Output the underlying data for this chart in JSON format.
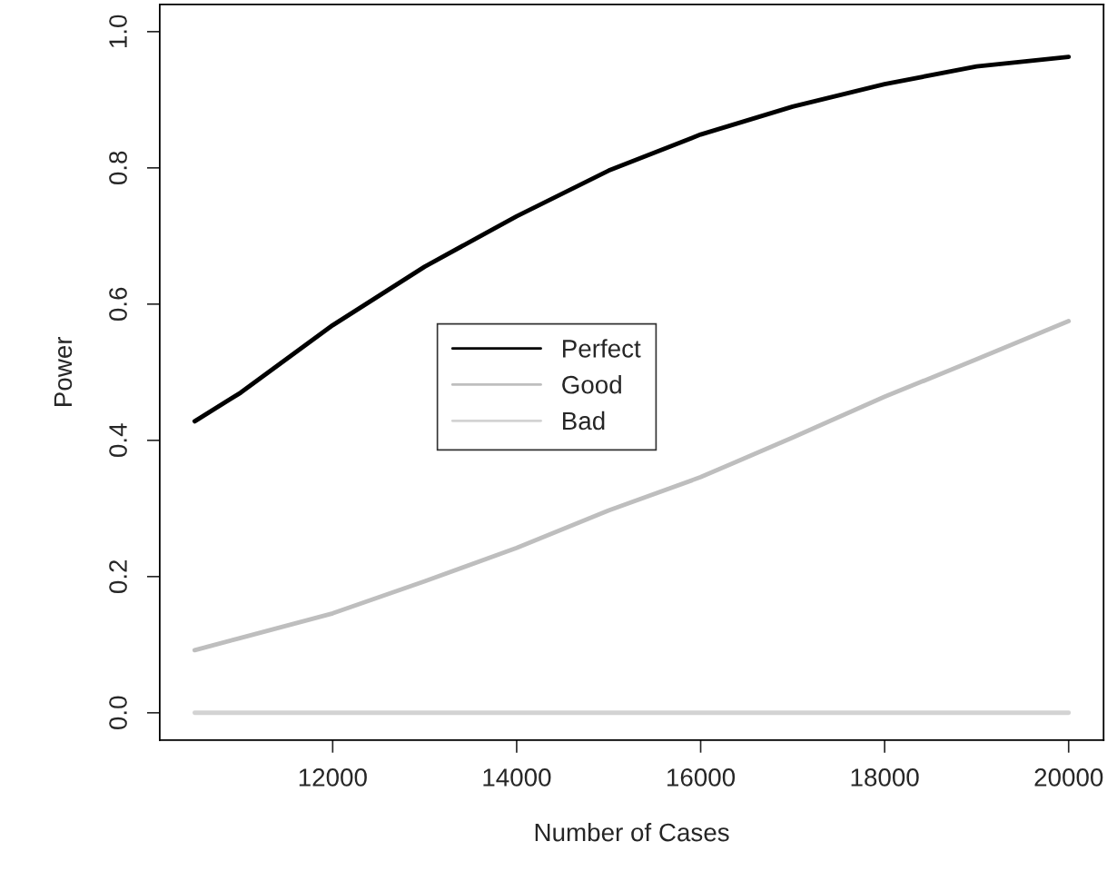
{
  "chart_data": {
    "type": "line",
    "xlabel": "Number of Cases",
    "ylabel": "Power",
    "x": [
      10500,
      11000,
      12000,
      13000,
      14000,
      15000,
      16000,
      17000,
      18000,
      19000,
      20000
    ],
    "series": [
      {
        "name": "Perfect",
        "color": "#000000",
        "values": [
          0.428,
          0.47,
          0.569,
          0.655,
          0.729,
          0.796,
          0.849,
          0.89,
          0.923,
          0.949,
          0.963
        ]
      },
      {
        "name": "Good",
        "color": "#bebebe",
        "values": [
          0.092,
          0.11,
          0.146,
          0.193,
          0.242,
          0.297,
          0.346,
          0.404,
          0.464,
          0.519,
          0.575
        ]
      },
      {
        "name": "Bad",
        "color": "#d3d3d3",
        "values": [
          0,
          0,
          0,
          0,
          0,
          0,
          0,
          0,
          0,
          0,
          0
        ]
      }
    ],
    "xlim": [
      10120,
      20380
    ],
    "xticks": [
      12000,
      14000,
      16000,
      18000,
      20000
    ],
    "ylim": [
      -0.04,
      1.04
    ],
    "yticks": [
      {
        "value": 0,
        "label": "0.0"
      },
      {
        "value": 0.2,
        "label": "0.2"
      },
      {
        "value": 0.4,
        "label": "0.4"
      },
      {
        "value": 0.6,
        "label": "0.6"
      },
      {
        "value": 0.8,
        "label": "0.8"
      },
      {
        "value": 1,
        "label": "1.0"
      }
    ],
    "grid": false,
    "legend": "center",
    "marker": "none",
    "line_style": "solid"
  }
}
